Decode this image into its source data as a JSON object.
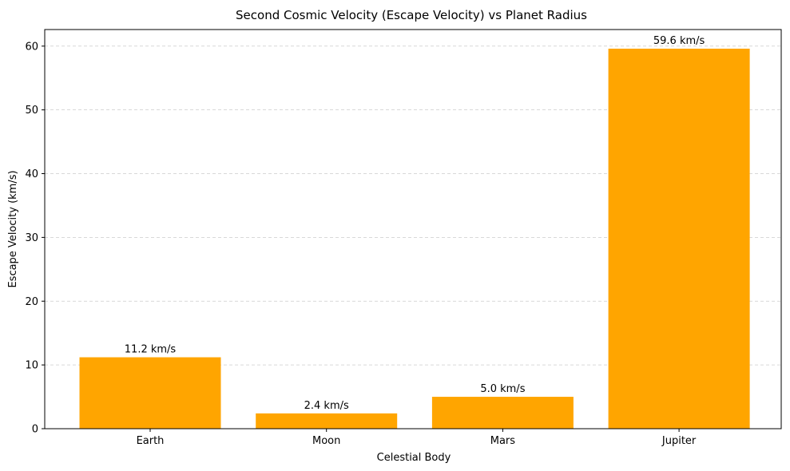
{
  "chart_data": {
    "type": "bar",
    "title": "Second Cosmic Velocity (Escape Velocity) vs Planet Radius",
    "xlabel": "Celestial Body",
    "ylabel": "Escape Velocity (km/s)",
    "categories": [
      "Earth",
      "Moon",
      "Mars",
      "Jupiter"
    ],
    "values": [
      11.2,
      2.4,
      5.0,
      59.6
    ],
    "data_labels": [
      "11.2 km/s",
      "2.4 km/s",
      "5.0 km/s",
      "59.6 km/s"
    ],
    "ylim": [
      0,
      62.6
    ],
    "yticks": [
      0,
      10,
      20,
      30,
      40,
      50,
      60
    ],
    "grid": "horizontal dashed",
    "bar_color": "#FFA500",
    "grid_color": "#cccccc"
  }
}
